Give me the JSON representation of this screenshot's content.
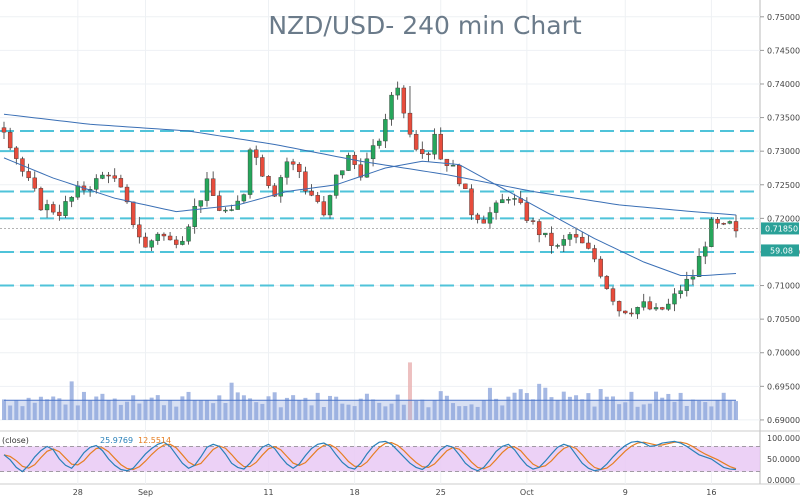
{
  "chart_data": {
    "type": "candlestick",
    "title": "NZD/USD- 240 min Chart",
    "colors": {
      "up": "#26a65b",
      "down": "#e74c3c",
      "ma": "#3a6fb5",
      "level": "#4fc3d9",
      "stoch_k": "#2980b9",
      "stoch_d": "#e67e22",
      "stoch_band": "#e9c9f5",
      "volume": "#8ea6dc",
      "volume_ma": "#4a74c9",
      "price_badge": "#2aa198"
    },
    "y_axis": {
      "ticks": [
        "0.75000",
        "0.74500",
        "0.74000",
        "0.73500",
        "0.73000",
        "0.72500",
        "0.72000",
        "0.71500",
        "0.71000",
        "0.70500",
        "0.70000",
        "0.69500",
        "0.69000"
      ],
      "range": [
        0.6885,
        0.7525
      ]
    },
    "x_axis": {
      "ticks": [
        {
          "label": "28",
          "bar": 12
        },
        {
          "label": "Sep",
          "bar": 23
        },
        {
          "label": "11",
          "bar": 43
        },
        {
          "label": "18",
          "bar": 57
        },
        {
          "label": "25",
          "bar": 71
        },
        {
          "label": "Oct",
          "bar": 85
        },
        {
          "label": "9",
          "bar": 101
        },
        {
          "label": "16",
          "bar": 115
        }
      ]
    },
    "price_path": [
      [
        0,
        0.7335
      ],
      [
        3,
        0.727
      ],
      [
        6,
        0.722
      ],
      [
        9,
        0.721
      ],
      [
        12,
        0.724
      ],
      [
        15,
        0.7255
      ],
      [
        17,
        0.727
      ],
      [
        19,
        0.724
      ],
      [
        21,
        0.7195
      ],
      [
        23,
        0.7155
      ],
      [
        25,
        0.718
      ],
      [
        27,
        0.7165
      ],
      [
        29,
        0.7175
      ],
      [
        31,
        0.7215
      ],
      [
        33,
        0.725
      ],
      [
        35,
        0.7215
      ],
      [
        37,
        0.7205
      ],
      [
        39,
        0.724
      ],
      [
        40,
        0.731
      ],
      [
        42,
        0.727
      ],
      [
        44,
        0.724
      ],
      [
        46,
        0.7285
      ],
      [
        48,
        0.727
      ],
      [
        49,
        0.7245
      ],
      [
        51,
        0.7225
      ],
      [
        52,
        0.72
      ],
      [
        54,
        0.726
      ],
      [
        56,
        0.729
      ],
      [
        58,
        0.727
      ],
      [
        60,
        0.73
      ],
      [
        62,
        0.734
      ],
      [
        63,
        0.7385
      ],
      [
        64,
        0.74
      ],
      [
        65,
        0.7355
      ],
      [
        67,
        0.731
      ],
      [
        69,
        0.73
      ],
      [
        70,
        0.733
      ],
      [
        71,
        0.729
      ],
      [
        72,
        0.7285
      ],
      [
        74,
        0.726
      ],
      [
        76,
        0.721
      ],
      [
        78,
        0.72
      ],
      [
        80,
        0.7215
      ],
      [
        82,
        0.7235
      ],
      [
        84,
        0.7215
      ],
      [
        86,
        0.719
      ],
      [
        88,
        0.717
      ],
      [
        90,
        0.7155
      ],
      [
        92,
        0.7175
      ],
      [
        94,
        0.716
      ],
      [
        96,
        0.714
      ],
      [
        98,
        0.71
      ],
      [
        100,
        0.7065
      ],
      [
        102,
        0.7065
      ],
      [
        104,
        0.707
      ],
      [
        106,
        0.706
      ],
      [
        108,
        0.707
      ],
      [
        110,
        0.7095
      ],
      [
        112,
        0.7115
      ],
      [
        114,
        0.7165
      ],
      [
        115,
        0.719
      ],
      [
        117,
        0.7185
      ],
      [
        118,
        0.719
      ],
      [
        119,
        0.7175
      ]
    ],
    "moving_average_long": [
      [
        0,
        0.7355
      ],
      [
        14,
        0.734
      ],
      [
        30,
        0.733
      ],
      [
        44,
        0.731
      ],
      [
        58,
        0.7285
      ],
      [
        72,
        0.7265
      ],
      [
        86,
        0.724
      ],
      [
        100,
        0.722
      ],
      [
        112,
        0.721
      ],
      [
        119,
        0.7205
      ]
    ],
    "moving_average_short": [
      [
        0,
        0.729
      ],
      [
        8,
        0.726
      ],
      [
        18,
        0.723
      ],
      [
        28,
        0.721
      ],
      [
        38,
        0.722
      ],
      [
        46,
        0.724
      ],
      [
        54,
        0.725
      ],
      [
        62,
        0.7275
      ],
      [
        68,
        0.7285
      ],
      [
        74,
        0.728
      ],
      [
        80,
        0.725
      ],
      [
        88,
        0.721
      ],
      [
        96,
        0.717
      ],
      [
        104,
        0.7135
      ],
      [
        110,
        0.7115
      ],
      [
        114,
        0.7115
      ],
      [
        119,
        0.7118
      ]
    ],
    "horizontal_levels": [
      0.733,
      0.73,
      0.724,
      0.72,
      0.715,
      0.71
    ],
    "last_price": "0.71850",
    "volume_panel": {
      "ylabel_badge": "59.08"
    },
    "stochastic": {
      "label": "(close)",
      "value_k": "25.9769",
      "value_d": "12.5514",
      "ticks": [
        "100.0000",
        "50.0000",
        "0.0000"
      ],
      "k_values": [
        60,
        48,
        30,
        20,
        35,
        55,
        70,
        80,
        72,
        50,
        35,
        28,
        45,
        65,
        78,
        82,
        70,
        50,
        35,
        25,
        22,
        28,
        45,
        62,
        75,
        85,
        90,
        80,
        60,
        40,
        28,
        35,
        55,
        78,
        85,
        80,
        62,
        40,
        30,
        26,
        40,
        60,
        78,
        85,
        75,
        55,
        38,
        28,
        38,
        58,
        75,
        85,
        88,
        80,
        60,
        42,
        30,
        26,
        40,
        62,
        80,
        90,
        92,
        85,
        70,
        55,
        40,
        30,
        25,
        35,
        55,
        72,
        82,
        78,
        60,
        40,
        28,
        22,
        30,
        48,
        68,
        80,
        85,
        72,
        52,
        35,
        26,
        30,
        45,
        62,
        78,
        85,
        80,
        60,
        40,
        28,
        22,
        25,
        38,
        55,
        70,
        82,
        90,
        92,
        88,
        80,
        82,
        88,
        90,
        92,
        88,
        80,
        70,
        60,
        55,
        50,
        40,
        30,
        26,
        25
      ]
    },
    "n_bars": 120
  }
}
